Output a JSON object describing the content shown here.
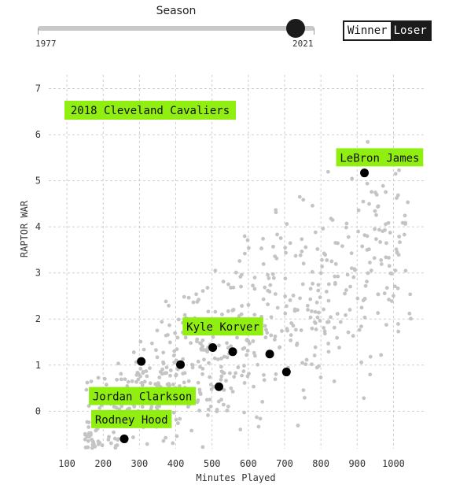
{
  "slider": {
    "title": "Season",
    "min_label": "1977",
    "max_label": "2021",
    "min": 1977,
    "max": 2021,
    "value": 2018
  },
  "toggle": {
    "winner_label": "Winner",
    "loser_label": "Loser",
    "selected": "Winner"
  },
  "chart_data": {
    "type": "scatter",
    "title": "2018 Cleveland Cavaliers",
    "xlabel": "Minutes Played",
    "ylabel": "RAPTOR WAR",
    "xlim": [
      50,
      1090
    ],
    "ylim": [
      -0.9,
      7.3
    ],
    "xticks": [
      100,
      200,
      300,
      400,
      500,
      600,
      700,
      800,
      900,
      1000
    ],
    "yticks": [
      0,
      1,
      2,
      3,
      4,
      5,
      6,
      7
    ],
    "grid": true,
    "colors": {
      "background_points": "#c4c4c4",
      "highlight_points": "#000000",
      "label_bg": "#90ee11"
    },
    "highlighted": [
      {
        "x": 920,
        "y": 5.17
      },
      {
        "x": 305,
        "y": 1.08
      },
      {
        "x": 413,
        "y": 1.01
      },
      {
        "x": 502,
        "y": 1.38
      },
      {
        "x": 557,
        "y": 1.29
      },
      {
        "x": 659,
        "y": 1.24
      },
      {
        "x": 705,
        "y": 0.85
      },
      {
        "x": 519,
        "y": 0.53
      },
      {
        "x": 258,
        "y": -0.6
      }
    ],
    "labels": [
      {
        "text": "LeBron James",
        "x": 962,
        "y": 5.5
      },
      {
        "text": "Kyle Korver",
        "x": 530,
        "y": 1.83
      },
      {
        "text": "Jordan Clarkson",
        "x": 308,
        "y": 0.32
      },
      {
        "text": "Rodney Hood",
        "x": 278,
        "y": -0.18
      }
    ],
    "background_count": 650,
    "background_seed": 20180
  }
}
